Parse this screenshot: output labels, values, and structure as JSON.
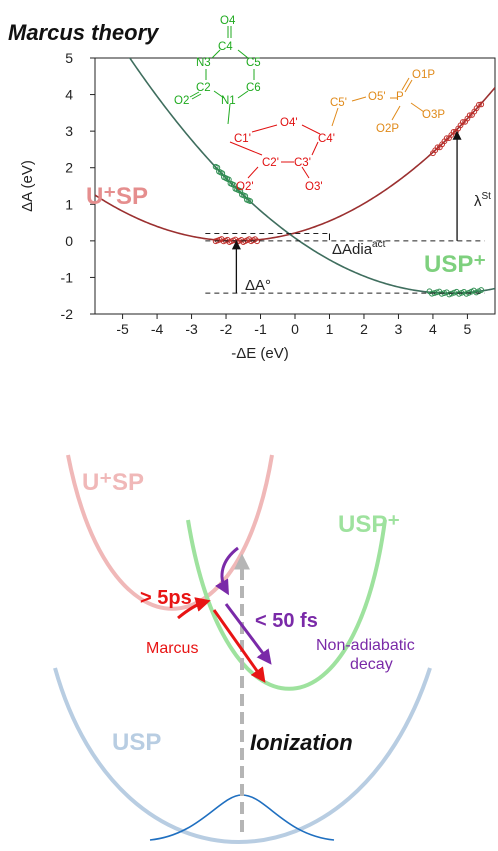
{
  "top_title": "Marcus theory",
  "chart_data": {
    "type": "line",
    "title": "Marcus theory",
    "xlabel": "-ΔE (eV)",
    "ylabel": "ΔA (eV)",
    "xlim": [
      -5.8,
      5.8
    ],
    "ylim": [
      -2,
      5
    ],
    "xticks": [
      "-5",
      "-4",
      "-3",
      "-2",
      "-1",
      "0",
      "1",
      "2",
      "3",
      "4",
      "5"
    ],
    "yticks": [
      "-2",
      "-1",
      "0",
      "1",
      "2",
      "3",
      "4",
      "5"
    ],
    "series": [
      {
        "name": "U⁺SP",
        "color": "#9b3030",
        "min_x": -1.7,
        "min_y": 0.0,
        "curvature": 0.0745,
        "label_color": "#e58e8e"
      },
      {
        "name": "USP⁺",
        "color": "#3f6e5e",
        "min_x": 4.5,
        "min_y": -1.43,
        "curvature": 0.0745,
        "label_color": "#7ed07e"
      }
    ],
    "sample_clusters": [
      {
        "series": "U⁺SP",
        "x_range": [
          -2.3,
          -1.1
        ],
        "color": "#c0302c"
      },
      {
        "series": "USP⁺",
        "x_range": [
          -2.3,
          -1.3
        ],
        "color": "#2f8f52"
      },
      {
        "series": "U⁺SP",
        "x_range": [
          4.0,
          5.4
        ],
        "color": "#c0302c"
      },
      {
        "series": "USP⁺",
        "x_range": [
          3.9,
          5.4
        ],
        "color": "#2f8f52"
      }
    ],
    "annotations": {
      "dA0": "ΔA°",
      "dAdia": "ΔAdia",
      "dAdia_sup": "act",
      "lambda": "λ",
      "lambda_sup": "St"
    }
  },
  "molecule": {
    "base_atoms": [
      "O4",
      "C4",
      "N3",
      "C5",
      "C2",
      "C6",
      "O2",
      "N1"
    ],
    "sugar_atoms": [
      "C1'",
      "O4'",
      "C4'",
      "C2'",
      "C3'",
      "O2'",
      "O3'"
    ],
    "phosphate_atoms": [
      "C5'",
      "O5'",
      "P",
      "O1P",
      "O3P",
      "O2P"
    ],
    "colors": {
      "base": "#1faa1f",
      "sugar": "#e01010",
      "phosphate": "#e08a1a"
    }
  },
  "schematic": {
    "labels": {
      "usp_plus_top": "U⁺SP",
      "usp_cation": "USP⁺",
      "usp": "USP",
      "marcus_time": "> 5ps",
      "marcus": "Marcus",
      "fast_time": "< 50 fs",
      "nonadiabatic_line1": "Non-adiabatic",
      "nonadiabatic_line2": "decay",
      "ionization": "Ionization"
    },
    "colors": {
      "uplus": "#f0b8b8",
      "uspplus": "#9ee29e",
      "usp": "#b8cde2",
      "gaussian": "#1f6fc0",
      "arrow_red": "#e81414",
      "arrow_purple": "#7a2aa8",
      "dashed_arrow": "#b5b5b5"
    }
  }
}
